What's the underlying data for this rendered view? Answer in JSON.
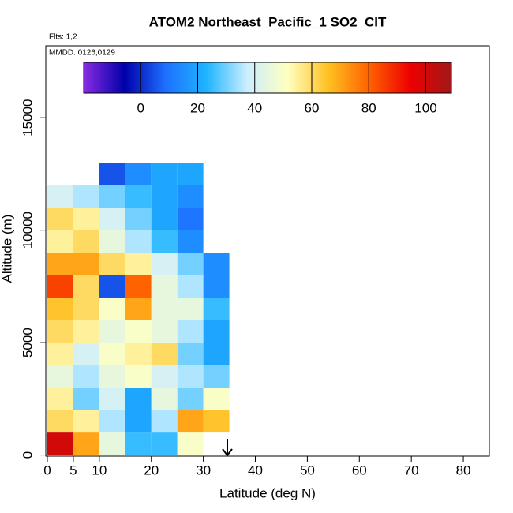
{
  "chart_data": {
    "type": "heatmap",
    "title": "ATOM2 Northeast_Pacific_1 SO2_CIT",
    "annotations": [
      "Flts: 1,2",
      "MMDD: 0126,0129"
    ],
    "x_label": "Latitude (deg N)",
    "y_label": "Altitude (m)",
    "x_edges": [
      0,
      5,
      10,
      15,
      20,
      25,
      30,
      35
    ],
    "y_edges": [
      0,
      1000,
      2000,
      3000,
      4000,
      5000,
      6000,
      7000,
      8000,
      9000,
      10000,
      11000,
      12000,
      13000
    ],
    "values": [
      [
        100,
        70,
        45,
        25,
        25,
        50,
        null
      ],
      [
        60,
        55,
        35,
        20,
        35,
        70,
        65
      ],
      [
        55,
        30,
        40,
        20,
        45,
        30,
        50
      ],
      [
        45,
        35,
        45,
        50,
        40,
        35,
        30
      ],
      [
        55,
        40,
        50,
        55,
        60,
        30,
        20
      ],
      [
        60,
        55,
        45,
        50,
        45,
        35,
        20
      ],
      [
        65,
        60,
        50,
        70,
        45,
        45,
        25
      ],
      [
        85,
        60,
        5,
        80,
        45,
        35,
        15
      ],
      [
        70,
        70,
        60,
        55,
        40,
        30,
        15
      ],
      [
        55,
        60,
        45,
        35,
        25,
        15,
        null
      ],
      [
        60,
        55,
        40,
        30,
        20,
        10,
        null
      ],
      [
        40,
        35,
        30,
        25,
        20,
        15,
        null
      ],
      [
        null,
        null,
        5,
        15,
        20,
        20,
        null
      ]
    ],
    "xlim": [
      -0.3,
      85
    ],
    "ylim": [
      -50,
      18200
    ],
    "xticks": [
      0,
      5,
      10,
      20,
      30,
      40,
      50,
      60,
      70,
      80
    ],
    "yticks": [
      0,
      5000,
      10000,
      15000
    ],
    "colorbar": {
      "lim": [
        -20,
        109
      ],
      "ticks": [
        0,
        20,
        40,
        60,
        80,
        100
      ],
      "colors": [
        "#8a2be2",
        "#0000aa",
        "#1e6fff",
        "#1eb4ff",
        "#cceeff",
        "#ffffc0",
        "#ffc020",
        "#ff6000",
        "#ee0000",
        "#a01818"
      ]
    }
  }
}
